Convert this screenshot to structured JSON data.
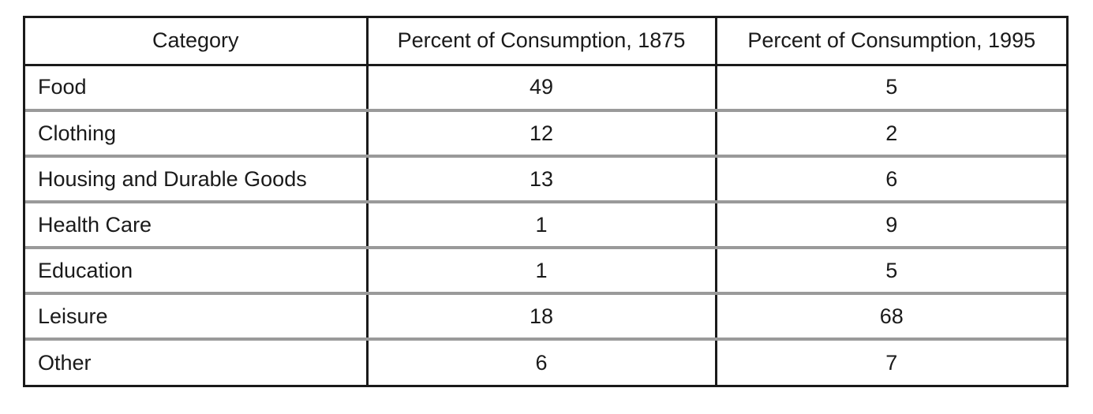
{
  "chart_data": {
    "type": "table",
    "columns": [
      "Category",
      "Percent of Consumption, 1875",
      "Percent of Consumption, 1995"
    ],
    "rows": [
      {
        "category": "Food",
        "pct_1875": "49",
        "pct_1995": "5"
      },
      {
        "category": "Clothing",
        "pct_1875": "12",
        "pct_1995": "2"
      },
      {
        "category": "Housing and Durable Goods",
        "pct_1875": "13",
        "pct_1995": "6"
      },
      {
        "category": "Health Care",
        "pct_1875": "1",
        "pct_1995": "9"
      },
      {
        "category": "Education",
        "pct_1875": "1",
        "pct_1995": "5"
      },
      {
        "category": "Leisure",
        "pct_1875": "18",
        "pct_1995": "68"
      },
      {
        "category": "Other",
        "pct_1875": "6",
        "pct_1995": "7"
      }
    ]
  }
}
